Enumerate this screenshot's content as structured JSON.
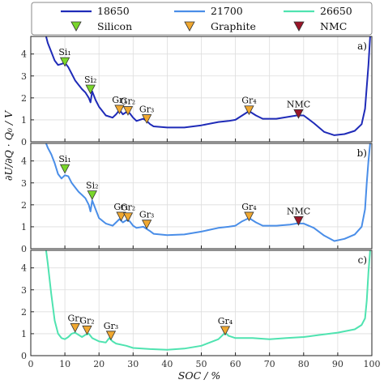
{
  "chart_data": {
    "type": "line",
    "xlabel": "SOC / %",
    "ylabel": "∂U/∂Q · Q₀ / V",
    "xlim": [
      0,
      100
    ],
    "x_ticks": [
      0,
      10,
      20,
      30,
      40,
      50,
      60,
      70,
      80,
      90,
      100
    ],
    "ylim": [
      0,
      4.8
    ],
    "y_ticks": [
      0,
      1,
      2,
      3,
      4
    ],
    "grid": true,
    "legend": {
      "position": "top",
      "series": [
        {
          "name": "18650",
          "color": "#1f2bb8"
        },
        {
          "name": "21700",
          "color": "#4a8ee8"
        },
        {
          "name": "26650",
          "color": "#4fe3b0"
        }
      ],
      "markers": [
        {
          "name": "Silicon",
          "color": "#79d62a"
        },
        {
          "name": "Graphite",
          "color": "#f0a830"
        },
        {
          "name": "NMC",
          "color": "#9a1528"
        }
      ]
    },
    "panels": [
      {
        "label": "a)",
        "series": "18650",
        "color": "#1f2bb8",
        "points": [
          [
            4.5,
            4.8
          ],
          [
            5,
            4.5
          ],
          [
            6,
            4.1
          ],
          [
            7,
            3.7
          ],
          [
            8,
            3.5
          ],
          [
            9,
            3.55
          ],
          [
            10,
            3.6
          ],
          [
            11,
            3.4
          ],
          [
            12,
            3.1
          ],
          [
            13,
            2.8
          ],
          [
            14,
            2.6
          ],
          [
            15,
            2.4
          ],
          [
            16,
            2.25
          ],
          [
            17,
            2.0
          ],
          [
            17.5,
            1.8
          ],
          [
            18,
            2.3
          ],
          [
            19,
            1.9
          ],
          [
            20,
            1.6
          ],
          [
            22,
            1.2
          ],
          [
            24,
            1.1
          ],
          [
            25,
            1.25
          ],
          [
            26,
            1.45
          ],
          [
            27,
            1.25
          ],
          [
            28,
            1.35
          ],
          [
            29,
            1.3
          ],
          [
            30,
            1.1
          ],
          [
            31,
            0.95
          ],
          [
            33,
            1.05
          ],
          [
            34,
            0.95
          ],
          [
            35,
            0.8
          ],
          [
            36,
            0.7
          ],
          [
            40,
            0.65
          ],
          [
            45,
            0.65
          ],
          [
            50,
            0.75
          ],
          [
            55,
            0.9
          ],
          [
            58,
            0.95
          ],
          [
            60,
            1.0
          ],
          [
            62,
            1.2
          ],
          [
            64,
            1.4
          ],
          [
            66,
            1.2
          ],
          [
            68,
            1.05
          ],
          [
            72,
            1.05
          ],
          [
            76,
            1.15
          ],
          [
            78,
            1.2
          ],
          [
            80,
            1.2
          ],
          [
            83,
            0.85
          ],
          [
            86,
            0.45
          ],
          [
            89,
            0.3
          ],
          [
            92,
            0.35
          ],
          [
            95,
            0.5
          ],
          [
            97,
            0.8
          ],
          [
            98,
            1.5
          ],
          [
            98.5,
            2.5
          ],
          [
            99,
            3.5
          ],
          [
            99.5,
            4.8
          ]
        ],
        "markers": [
          {
            "x": 10,
            "y": 3.65,
            "type": "Silicon",
            "label": "Si₁"
          },
          {
            "x": 17.5,
            "y": 2.4,
            "type": "Silicon",
            "label": "Si₂"
          },
          {
            "x": 26,
            "y": 1.48,
            "type": "Graphite",
            "label": "Gr₁"
          },
          {
            "x": 28.5,
            "y": 1.42,
            "type": "Graphite",
            "label": "Gr₂"
          },
          {
            "x": 34,
            "y": 1.05,
            "type": "Graphite",
            "label": "Gr₃"
          },
          {
            "x": 64,
            "y": 1.45,
            "type": "Graphite",
            "label": "Gr₄"
          },
          {
            "x": 78.5,
            "y": 1.28,
            "type": "NMC",
            "label": "NMC"
          }
        ]
      },
      {
        "label": "b)",
        "series": "21700",
        "color": "#4a8ee8",
        "points": [
          [
            4.5,
            4.8
          ],
          [
            5,
            4.6
          ],
          [
            6,
            4.3
          ],
          [
            7,
            3.9
          ],
          [
            8,
            3.4
          ],
          [
            9,
            3.2
          ],
          [
            10,
            3.35
          ],
          [
            11,
            3.3
          ],
          [
            12,
            3.0
          ],
          [
            13,
            2.8
          ],
          [
            14,
            2.6
          ],
          [
            15,
            2.45
          ],
          [
            16,
            2.3
          ],
          [
            17,
            2.0
          ],
          [
            17.5,
            1.7
          ],
          [
            18,
            2.2
          ],
          [
            19,
            1.8
          ],
          [
            20,
            1.4
          ],
          [
            22,
            1.15
          ],
          [
            24,
            1.05
          ],
          [
            25,
            1.2
          ],
          [
            26,
            1.35
          ],
          [
            27,
            1.2
          ],
          [
            28,
            1.3
          ],
          [
            29,
            1.25
          ],
          [
            30,
            1.05
          ],
          [
            31,
            0.95
          ],
          [
            33,
            1.0
          ],
          [
            34,
            0.9
          ],
          [
            35,
            0.8
          ],
          [
            36,
            0.68
          ],
          [
            40,
            0.62
          ],
          [
            45,
            0.65
          ],
          [
            50,
            0.78
          ],
          [
            55,
            0.95
          ],
          [
            58,
            1.0
          ],
          [
            60,
            1.05
          ],
          [
            62,
            1.25
          ],
          [
            64,
            1.4
          ],
          [
            66,
            1.2
          ],
          [
            68,
            1.05
          ],
          [
            72,
            1.05
          ],
          [
            76,
            1.1
          ],
          [
            78,
            1.15
          ],
          [
            80,
            1.15
          ],
          [
            83,
            0.95
          ],
          [
            86,
            0.6
          ],
          [
            89,
            0.35
          ],
          [
            92,
            0.45
          ],
          [
            95,
            0.65
          ],
          [
            97,
            1.0
          ],
          [
            98,
            1.8
          ],
          [
            98.5,
            3.0
          ],
          [
            99,
            4.0
          ],
          [
            99.5,
            4.8
          ]
        ],
        "markers": [
          {
            "x": 10,
            "y": 3.65,
            "type": "Silicon",
            "label": "Si₁"
          },
          {
            "x": 18,
            "y": 2.45,
            "type": "Silicon",
            "label": "Si₂"
          },
          {
            "x": 26.5,
            "y": 1.48,
            "type": "Graphite",
            "label": "Gr₁"
          },
          {
            "x": 28.5,
            "y": 1.45,
            "type": "Graphite",
            "label": "Gr₂"
          },
          {
            "x": 34,
            "y": 1.12,
            "type": "Graphite",
            "label": "Gr₃"
          },
          {
            "x": 64,
            "y": 1.48,
            "type": "Graphite",
            "label": "Gr₄"
          },
          {
            "x": 78.5,
            "y": 1.28,
            "type": "NMC",
            "label": "NMC"
          }
        ]
      },
      {
        "label": "c)",
        "series": "26650",
        "color": "#4fe3b0",
        "points": [
          [
            4.5,
            4.8
          ],
          [
            5,
            4.2
          ],
          [
            6,
            2.8
          ],
          [
            7,
            1.6
          ],
          [
            8,
            1.0
          ],
          [
            9,
            0.8
          ],
          [
            10,
            0.75
          ],
          [
            11,
            0.85
          ],
          [
            12,
            1.0
          ],
          [
            13,
            1.05
          ],
          [
            14,
            0.95
          ],
          [
            15,
            0.85
          ],
          [
            16,
            0.95
          ],
          [
            17,
            1.0
          ],
          [
            18,
            0.8
          ],
          [
            20,
            0.65
          ],
          [
            22,
            0.6
          ],
          [
            23,
            0.8
          ],
          [
            24,
            0.65
          ],
          [
            25,
            0.55
          ],
          [
            28,
            0.45
          ],
          [
            30,
            0.35
          ],
          [
            35,
            0.3
          ],
          [
            40,
            0.27
          ],
          [
            45,
            0.32
          ],
          [
            50,
            0.45
          ],
          [
            55,
            0.75
          ],
          [
            57,
            1.05
          ],
          [
            58,
            0.9
          ],
          [
            60,
            0.8
          ],
          [
            65,
            0.8
          ],
          [
            70,
            0.75
          ],
          [
            75,
            0.8
          ],
          [
            80,
            0.85
          ],
          [
            85,
            0.95
          ],
          [
            90,
            1.05
          ],
          [
            95,
            1.2
          ],
          [
            97,
            1.4
          ],
          [
            98,
            1.7
          ],
          [
            98.5,
            2.5
          ],
          [
            99,
            3.8
          ],
          [
            99.5,
            4.8
          ]
        ],
        "markers": [
          {
            "x": 13,
            "y": 1.28,
            "type": "Graphite",
            "label": "Gr₁"
          },
          {
            "x": 16.5,
            "y": 1.17,
            "type": "Graphite",
            "label": "Gr₂"
          },
          {
            "x": 23.5,
            "y": 0.93,
            "type": "Graphite",
            "label": "Gr₃"
          },
          {
            "x": 57,
            "y": 1.15,
            "type": "Graphite",
            "label": "Gr₄"
          }
        ]
      }
    ]
  }
}
